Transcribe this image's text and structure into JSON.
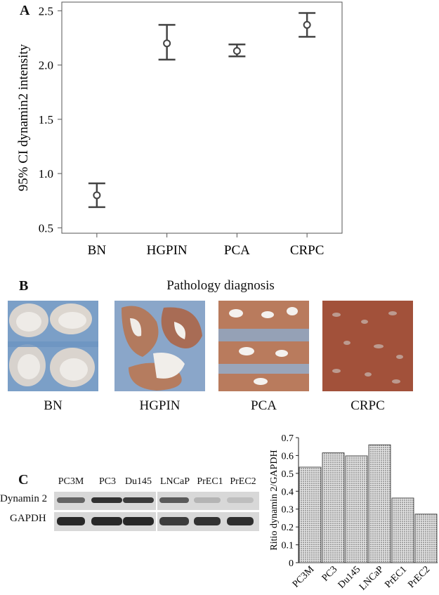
{
  "panels": {
    "a": "A",
    "b": "B",
    "c": "C"
  },
  "chart_data": [
    {
      "type": "errorbar",
      "ylabel": "95% CI dynamin2 intensity",
      "categories": [
        "BN",
        "HGPIN",
        "PCA",
        "CRPC"
      ],
      "mean": [
        0.8,
        2.2,
        2.13,
        2.37
      ],
      "ci_low": [
        0.69,
        2.05,
        2.08,
        2.26
      ],
      "ci_high": [
        0.91,
        2.37,
        2.19,
        2.48
      ],
      "yticks": [
        "0.5",
        "1.0",
        "1.5",
        "2.0",
        "2.5"
      ],
      "ylim": [
        0.45,
        2.58
      ]
    },
    {
      "type": "bar",
      "ylabel": "Ritio dynamin 2/GAPDH",
      "categories": [
        "PC3M",
        "PC3",
        "Du145",
        "LNCaP",
        "PrEC1",
        "PrEC2"
      ],
      "values": [
        0.535,
        0.615,
        0.598,
        0.66,
        0.362,
        0.272
      ],
      "yticks": [
        "0",
        "0.1",
        "0.2",
        "0.3",
        "0.4",
        "0.5",
        "0.6",
        "0.7"
      ],
      "ylim": [
        0,
        0.7
      ]
    }
  ],
  "histology": {
    "title": "Pathology diagnosis",
    "labels": [
      "BN",
      "HGPIN",
      "PCA",
      "CRPC"
    ]
  },
  "blot": {
    "lanes": [
      "PC3M",
      "PC3",
      "Du145",
      "LNCaP",
      "PrEC1",
      "PrEC2"
    ],
    "rows": [
      "Dynamin 2",
      "GAPDH"
    ],
    "dynamin_band_intensity": [
      0.65,
      0.9,
      0.85,
      0.7,
      0.25,
      0.2
    ],
    "gapdh_band_intensity": [
      0.95,
      0.95,
      0.95,
      0.85,
      0.9,
      0.92
    ]
  }
}
